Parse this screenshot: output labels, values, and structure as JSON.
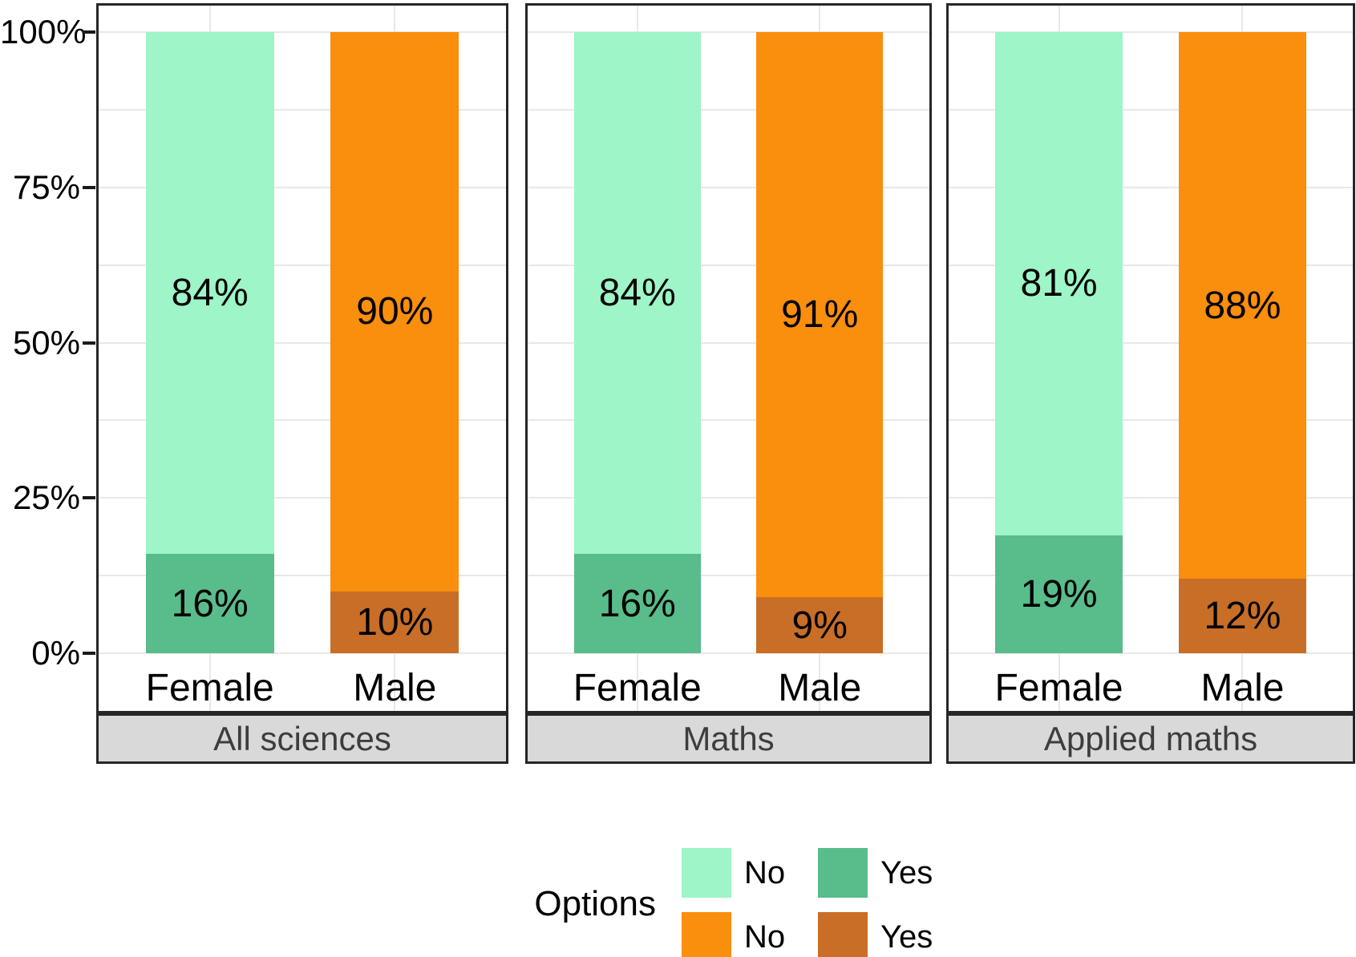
{
  "chart_data": {
    "type": "bar",
    "subtype": "stacked-100-percent-faceted",
    "orientation": "vertical",
    "grid": "on",
    "y_axis": {
      "tick_labels": [
        "100%",
        "75%",
        "50%",
        "25%",
        "0%"
      ],
      "tick_values": [
        100,
        75,
        50,
        25,
        0
      ],
      "minor_tick_values": [
        87.5,
        62.5,
        37.5,
        12.5
      ],
      "range": [
        0,
        100
      ]
    },
    "categories": [
      "Female",
      "Male"
    ],
    "facets": [
      {
        "strip": "All sciences",
        "bars": [
          {
            "category": "Female",
            "segments": [
              {
                "option": "No",
                "value": 84,
                "label": "84%",
                "color": "#9EF5C7"
              },
              {
                "option": "Yes",
                "value": 16,
                "label": "16%",
                "color": "#59BC8B"
              }
            ]
          },
          {
            "category": "Male",
            "segments": [
              {
                "option": "No",
                "value": 90,
                "label": "90%",
                "color": "#FA8E0D"
              },
              {
                "option": "Yes",
                "value": 10,
                "label": "10%",
                "color": "#C86E27"
              }
            ]
          }
        ]
      },
      {
        "strip": "Maths",
        "bars": [
          {
            "category": "Female",
            "segments": [
              {
                "option": "No",
                "value": 84,
                "label": "84%",
                "color": "#9EF5C7"
              },
              {
                "option": "Yes",
                "value": 16,
                "label": "16%",
                "color": "#59BC8B"
              }
            ]
          },
          {
            "category": "Male",
            "segments": [
              {
                "option": "No",
                "value": 91,
                "label": "91%",
                "color": "#FA8E0D"
              },
              {
                "option": "Yes",
                "value": 9,
                "label": "9%",
                "color": "#C86E27"
              }
            ]
          }
        ]
      },
      {
        "strip": "Applied maths",
        "bars": [
          {
            "category": "Female",
            "segments": [
              {
                "option": "No",
                "value": 81,
                "label": "81%",
                "color": "#9EF5C7"
              },
              {
                "option": "Yes",
                "value": 19,
                "label": "19%",
                "color": "#59BC8B"
              }
            ]
          },
          {
            "category": "Male",
            "segments": [
              {
                "option": "No",
                "value": 88,
                "label": "88%",
                "color": "#FA8E0D"
              },
              {
                "option": "Yes",
                "value": 12,
                "label": "12%",
                "color": "#C86E27"
              }
            ]
          }
        ]
      }
    ],
    "legend": {
      "title": "Options",
      "rows": [
        [
          {
            "label": "No",
            "color": "#9EF5C7"
          },
          {
            "label": "Yes",
            "color": "#59BC8B"
          }
        ],
        [
          {
            "label": "No",
            "color": "#FA8E0D"
          },
          {
            "label": "Yes",
            "color": "#C86E27"
          }
        ]
      ],
      "position": "bottom"
    },
    "colors": {
      "panel_border": "#262626",
      "gridline": "#e8e8e8",
      "strip_background": "#d9d9d9",
      "strip_text": "#3d3d3d",
      "tick": "#1a1a1a",
      "label_text": "#000000"
    }
  }
}
